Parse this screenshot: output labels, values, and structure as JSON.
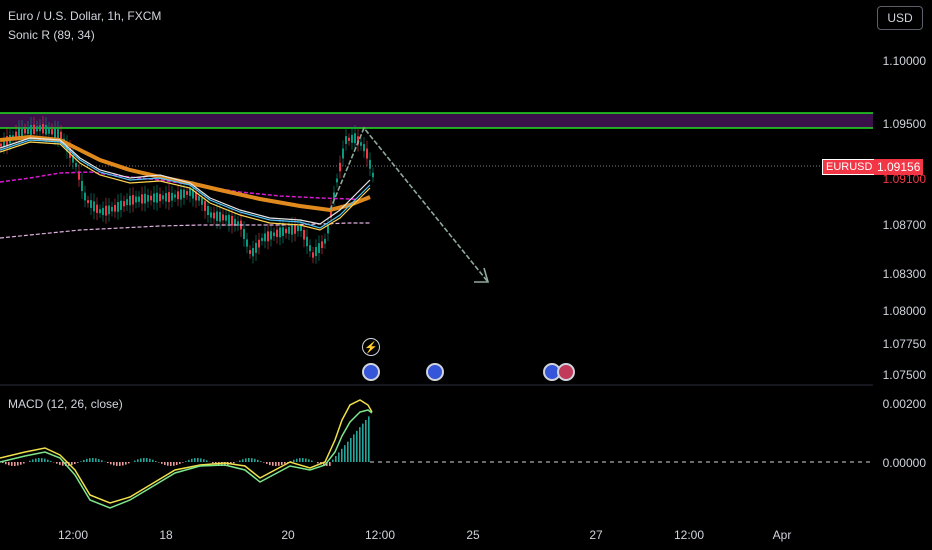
{
  "header": {
    "symbol_title": "Euro / U.S. Dollar, 1h, FXCM",
    "indicator": "Sonic R (89, 34)",
    "currency_button": "USD"
  },
  "price_axis": {
    "labels": [
      "1.10000",
      "1.09500",
      "1.08700",
      "1.08300",
      "1.08000",
      "1.07750",
      "1.07500"
    ],
    "symbol_badge": "EURUSD",
    "current_price": "1.09156",
    "partial_label": "1.09100"
  },
  "macd": {
    "title": "MACD (12, 26, close)",
    "labels": [
      "0.00200",
      "0.00000"
    ]
  },
  "time_axis": {
    "labels": [
      "12:00",
      "18",
      "20",
      "12:00",
      "25",
      "27",
      "12:00",
      "Apr"
    ]
  },
  "colors": {
    "resistance_zone": "#3a0f4a",
    "resistance_lines": "#22dd22",
    "projection_arrow": "#8fa99a",
    "ema_orange": "#e08a1e",
    "ema_magenta": "#d81bd0",
    "badge_red": "#f23645"
  },
  "icons": [
    "lightning-icon",
    "event-flag-icon"
  ]
}
